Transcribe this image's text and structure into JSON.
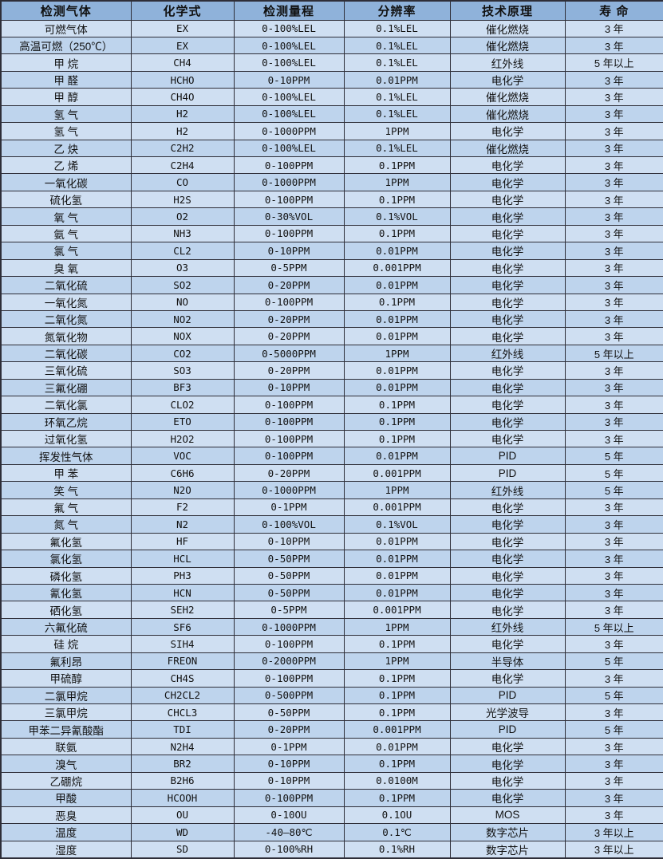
{
  "colors": {
    "header_bg": "#8fb2da",
    "row_odd_bg": "#cfdff2",
    "row_even_bg": "#bed4ed",
    "border": "#2e2e38",
    "text": "#111111"
  },
  "table": {
    "columns": [
      {
        "key": "gas-name",
        "label": "检测气体"
      },
      {
        "key": "chemical-formula",
        "label": "化学式"
      },
      {
        "key": "detection-range",
        "label": "检测量程"
      },
      {
        "key": "resolution",
        "label": "分辨率"
      },
      {
        "key": "technology",
        "label": "技术原理"
      },
      {
        "key": "lifespan",
        "label": "寿 命"
      }
    ],
    "rows": [
      [
        "可燃气体",
        "EX",
        "0-100%LEL",
        "0.1%LEL",
        "催化燃烧",
        "3 年"
      ],
      [
        "高温可燃（250℃）",
        "EX",
        "0-100%LEL",
        "0.1%LEL",
        "催化燃烧",
        "3 年"
      ],
      [
        "甲 烷",
        "CH4",
        "0-100%LEL",
        "0.1%LEL",
        "红外线",
        "5 年以上"
      ],
      [
        "甲 醛",
        "HCHO",
        "0-10PPM",
        "0.01PPM",
        "电化学",
        "3 年"
      ],
      [
        "甲 醇",
        "CH4O",
        "0-100%LEL",
        "0.1%LEL",
        "催化燃烧",
        "3 年"
      ],
      [
        "氢 气",
        "H2",
        "0-100%LEL",
        "0.1%LEL",
        "催化燃烧",
        "3 年"
      ],
      [
        "氢 气",
        "H2",
        "0-1000PPM",
        "1PPM",
        "电化学",
        "3 年"
      ],
      [
        "乙 炔",
        "C2H2",
        "0-100%LEL",
        "0.1%LEL",
        "催化燃烧",
        "3 年"
      ],
      [
        "乙 烯",
        "C2H4",
        "0-100PPM",
        "0.1PPM",
        "电化学",
        "3 年"
      ],
      [
        "一氧化碳",
        "CO",
        "0-1000PPM",
        "1PPM",
        "电化学",
        "3 年"
      ],
      [
        "硫化氢",
        "H2S",
        "0-100PPM",
        "0.1PPM",
        "电化学",
        "3 年"
      ],
      [
        "氧 气",
        "O2",
        "0-30%VOL",
        "0.1%VOL",
        "电化学",
        "3 年"
      ],
      [
        "氨 气",
        "NH3",
        "0-100PPM",
        "0.1PPM",
        "电化学",
        "3 年"
      ],
      [
        "氯 气",
        "CL2",
        "0-10PPM",
        "0.01PPM",
        "电化学",
        "3 年"
      ],
      [
        "臭 氧",
        "O3",
        "0-5PPM",
        "0.001PPM",
        "电化学",
        "3 年"
      ],
      [
        "二氧化硫",
        "SO2",
        "0-20PPM",
        "0.01PPM",
        "电化学",
        "3 年"
      ],
      [
        "一氧化氮",
        "NO",
        "0-100PPM",
        "0.1PPM",
        "电化学",
        "3 年"
      ],
      [
        "二氧化氮",
        "NO2",
        "0-20PPM",
        "0.01PPM",
        "电化学",
        "3 年"
      ],
      [
        "氮氧化物",
        "NOX",
        "0-20PPM",
        "0.01PPM",
        "电化学",
        "3 年"
      ],
      [
        "二氧化碳",
        "CO2",
        "0-5000PPM",
        "1PPM",
        "红外线",
        "5 年以上"
      ],
      [
        "三氧化硫",
        "SO3",
        "0-20PPM",
        "0.01PPM",
        "电化学",
        "3 年"
      ],
      [
        "三氟化硼",
        "BF3",
        "0-10PPM",
        "0.01PPM",
        "电化学",
        "3 年"
      ],
      [
        "二氧化氯",
        "CLO2",
        "0-100PPM",
        "0.1PPM",
        "电化学",
        "3 年"
      ],
      [
        "环氧乙烷",
        "ETO",
        "0-100PPM",
        "0.1PPM",
        "电化学",
        "3 年"
      ],
      [
        "过氧化氢",
        "H2O2",
        "0-100PPM",
        "0.1PPM",
        "电化学",
        "3 年"
      ],
      [
        "挥发性气体",
        "VOC",
        "0-100PPM",
        "0.01PPM",
        "PID",
        "5 年"
      ],
      [
        "甲 苯",
        "C6H6",
        "0-20PPM",
        "0.001PPM",
        "PID",
        "5 年"
      ],
      [
        "笑 气",
        "N2O",
        "0-1000PPM",
        "1PPM",
        "红外线",
        "5 年"
      ],
      [
        "氟 气",
        "F2",
        "0-1PPM",
        "0.001PPM",
        "电化学",
        "3 年"
      ],
      [
        "氮 气",
        "N2",
        "0-100%VOL",
        "0.1%VOL",
        "电化学",
        "3 年"
      ],
      [
        "氟化氢",
        "HF",
        "0-10PPM",
        "0.01PPM",
        "电化学",
        "3 年"
      ],
      [
        "氯化氢",
        "HCL",
        "0-50PPM",
        "0.01PPM",
        "电化学",
        "3 年"
      ],
      [
        "磷化氢",
        "PH3",
        "0-50PPM",
        "0.01PPM",
        "电化学",
        "3 年"
      ],
      [
        "氰化氢",
        "HCN",
        "0-50PPM",
        "0.01PPM",
        "电化学",
        "3 年"
      ],
      [
        "硒化氢",
        "SEH2",
        "0-5PPM",
        "0.001PPM",
        "电化学",
        "3 年"
      ],
      [
        "六氟化硫",
        "SF6",
        "0-1000PPM",
        "1PPM",
        "红外线",
        "5 年以上"
      ],
      [
        "硅 烷",
        "SIH4",
        "0-100PPM",
        "0.1PPM",
        "电化学",
        "3 年"
      ],
      [
        "氟利昂",
        "FREON",
        "0-2000PPM",
        "1PPM",
        "半导体",
        "5 年"
      ],
      [
        "甲硫醇",
        "CH4S",
        "0-100PPM",
        "0.1PPM",
        "电化学",
        "3 年"
      ],
      [
        "二氯甲烷",
        "CH2CL2",
        "0-500PPM",
        "0.1PPM",
        "PID",
        "5 年"
      ],
      [
        "三氯甲烷",
        "CHCL3",
        "0-50PPM",
        "0.1PPM",
        "光学波导",
        "3 年"
      ],
      [
        "甲苯二异氰酸酯",
        "TDI",
        "0-20PPM",
        "0.001PPM",
        "PID",
        "5 年"
      ],
      [
        "联氨",
        "N2H4",
        "0-1PPM",
        "0.01PPM",
        "电化学",
        "3 年"
      ],
      [
        "溴气",
        "BR2",
        "0-10PPM",
        "0.1PPM",
        "电化学",
        "3 年"
      ],
      [
        "乙硼烷",
        "B2H6",
        "0-10PPM",
        "0.0100M",
        "电化学",
        "3 年"
      ],
      [
        "甲酸",
        "HCOOH",
        "0-100PPM",
        "0.1PPM",
        "电化学",
        "3 年"
      ],
      [
        "恶臭",
        "OU",
        "0-10OU",
        "0.1OU",
        "MOS",
        "3 年"
      ],
      [
        "温度",
        "WD",
        "-40—80℃",
        "0.1℃",
        "数字芯片",
        "3 年以上"
      ],
      [
        "湿度",
        "SD",
        "0-100%RH",
        "0.1%RH",
        "数字芯片",
        "3 年以上"
      ]
    ]
  }
}
